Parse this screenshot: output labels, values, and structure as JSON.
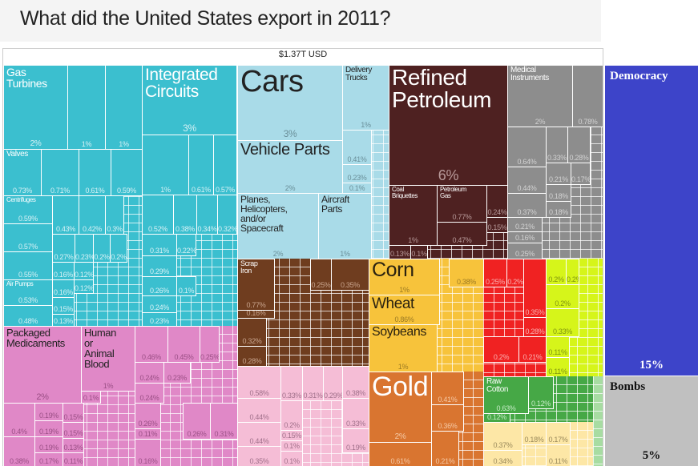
{
  "title": "What did the United States export in 2011?",
  "total_label": "$1.37T USD",
  "chart_data": {
    "type": "treemap",
    "title": "What did the United States export in 2011?",
    "total": "$1.37T USD",
    "groups": [
      {
        "fill": "#3bbfcf",
        "label_color": "#ffffff",
        "pct_color": "#d6f1f5",
        "cells": [
          {
            "label": "Gas\nTurbines",
            "pct": "2%"
          },
          {
            "label": "",
            "pct": "1%"
          },
          {
            "label": "",
            "pct": "1%"
          },
          {
            "label": "Integrated\nCircuits",
            "pct": "3%"
          },
          {
            "label": "Valves",
            "pct": "0.73%"
          },
          {
            "label": "",
            "pct": "0.71%"
          },
          {
            "label": "",
            "pct": "0.61%"
          },
          {
            "label": "",
            "pct": "0.59%"
          },
          {
            "label": "",
            "pct": "1%"
          },
          {
            "label": "",
            "pct": "0.61%"
          },
          {
            "label": "",
            "pct": "0.57%"
          },
          {
            "label": "Centrifuges",
            "pct": "0.59%"
          },
          {
            "label": "",
            "pct": "0.57%"
          },
          {
            "label": "",
            "pct": "0.55%"
          },
          {
            "label": "Air Pumps",
            "pct": "0.53%"
          },
          {
            "label": "",
            "pct": "0.48%"
          },
          {
            "label": "",
            "pct": "0.43%"
          },
          {
            "label": "",
            "pct": "0.42%"
          },
          {
            "label": "",
            "pct": "0.3%"
          },
          {
            "label": "",
            "pct": "0.52%"
          },
          {
            "label": "",
            "pct": "0.38%"
          },
          {
            "label": "",
            "pct": "0.34%"
          },
          {
            "label": "",
            "pct": "0.32%"
          },
          {
            "label": "",
            "pct": "0.27%"
          },
          {
            "label": "",
            "pct": "0.23%"
          },
          {
            "label": "",
            "pct": "0.2%"
          },
          {
            "label": "",
            "pct": "0.2%"
          },
          {
            "label": "",
            "pct": "0.16%"
          },
          {
            "label": "",
            "pct": "0.12%"
          },
          {
            "label": "",
            "pct": "0.16%"
          },
          {
            "label": "",
            "pct": "0.12%"
          },
          {
            "label": "",
            "pct": "0.15%"
          },
          {
            "label": "",
            "pct": "0.13%"
          },
          {
            "label": "",
            "pct": "0.31%"
          },
          {
            "label": "",
            "pct": "0.29%"
          },
          {
            "label": "",
            "pct": "0.26%"
          },
          {
            "label": "",
            "pct": "0.24%"
          },
          {
            "label": "",
            "pct": "0.23%"
          },
          {
            "label": "",
            "pct": "0.22%"
          },
          {
            "label": "",
            "pct": "0.1%"
          }
        ]
      },
      {
        "fill": "#a9dbe8",
        "label_color": "#222222",
        "pct_color": "#6a8f99",
        "cells": [
          {
            "label": "Cars",
            "pct": "3%"
          },
          {
            "label": "Vehicle Parts",
            "pct": "2%"
          },
          {
            "label": "Delivery\nTrucks",
            "pct": "1%"
          },
          {
            "label": "",
            "pct": "0.41%"
          },
          {
            "label": "",
            "pct": "0.23%"
          },
          {
            "label": "",
            "pct": "0.1%"
          },
          {
            "label": "Planes,\nHelicopters,\nand/or\nSpacecraft",
            "pct": "2%"
          },
          {
            "label": "Aircraft\nParts",
            "pct": "1%"
          }
        ]
      },
      {
        "fill": "#4e2121",
        "label_color": "#ffffff",
        "pct_color": "#b89a9a",
        "cells": [
          {
            "label": "Refined\nPetroleum",
            "pct": "6%"
          },
          {
            "label": "Coal\nBriquettes",
            "pct": "1%"
          },
          {
            "label": "Petroleum\nGas",
            "pct": "0.77%"
          },
          {
            "label": "",
            "pct": "0.47%"
          },
          {
            "label": "",
            "pct": "0.24%"
          },
          {
            "label": "",
            "pct": "0.15%"
          },
          {
            "label": "",
            "pct": "0.13%"
          },
          {
            "label": "",
            "pct": "0.1%"
          }
        ]
      },
      {
        "fill": "#8d8d8d",
        "label_color": "#ffffff",
        "pct_color": "#d2d2d2",
        "cells": [
          {
            "label": "Medical\nInstruments",
            "pct": "2%"
          },
          {
            "label": "",
            "pct": "0.78%"
          },
          {
            "label": "",
            "pct": "0.64%"
          },
          {
            "label": "",
            "pct": "0.33%"
          },
          {
            "label": "",
            "pct": "0.28%"
          },
          {
            "label": "",
            "pct": "0.44%"
          },
          {
            "label": "",
            "pct": "0.21%"
          },
          {
            "label": "",
            "pct": "0.17%"
          },
          {
            "label": "",
            "pct": "0.18%"
          },
          {
            "label": "",
            "pct": "0.37%"
          },
          {
            "label": "",
            "pct": "0.18%"
          },
          {
            "label": "",
            "pct": "0.21%"
          },
          {
            "label": "",
            "pct": "0.16%"
          },
          {
            "label": "",
            "pct": "0.25%"
          }
        ]
      },
      {
        "fill": "#6f3d1f",
        "label_color": "#ffffff",
        "pct_color": "#c9a58e",
        "cells": [
          {
            "label": "Scrap\nIron",
            "pct": "0.77%"
          },
          {
            "label": "",
            "pct": "0.16%"
          },
          {
            "label": "",
            "pct": "0.32%"
          },
          {
            "label": "",
            "pct": "0.28%"
          },
          {
            "label": "",
            "pct": "0.25%"
          },
          {
            "label": "",
            "pct": "0.35%"
          }
        ]
      },
      {
        "fill": "#e088c7",
        "label_color": "#222222",
        "pct_color": "#9a4f85",
        "cells": [
          {
            "label": "Packaged\nMedicaments",
            "pct": "2%"
          },
          {
            "label": "Human\nor\nAnimal\nBlood",
            "pct": "1%"
          },
          {
            "label": "",
            "pct": "0.1%"
          },
          {
            "label": "",
            "pct": "0.46%"
          },
          {
            "label": "",
            "pct": "0.45%"
          },
          {
            "label": "",
            "pct": "0.25%"
          },
          {
            "label": "",
            "pct": "0.24%"
          },
          {
            "label": "",
            "pct": "0.23%"
          },
          {
            "label": "",
            "pct": "0.24%"
          },
          {
            "label": "",
            "pct": "0.4%"
          },
          {
            "label": "",
            "pct": "0.38%"
          },
          {
            "label": "",
            "pct": "0.19%"
          },
          {
            "label": "",
            "pct": "0.19%"
          },
          {
            "label": "",
            "pct": "0.19%"
          },
          {
            "label": "",
            "pct": "0.17%"
          },
          {
            "label": "",
            "pct": "0.15%"
          },
          {
            "label": "",
            "pct": "0.15%"
          },
          {
            "label": "",
            "pct": "0.13%"
          },
          {
            "label": "",
            "pct": "0.11%"
          },
          {
            "label": "",
            "pct": "0.26%"
          },
          {
            "label": "",
            "pct": "0.11%"
          },
          {
            "label": "",
            "pct": "0.16%"
          },
          {
            "label": "",
            "pct": "0.26%"
          },
          {
            "label": "",
            "pct": "0.31%"
          }
        ]
      },
      {
        "fill": "#f5bdd6",
        "label_color": "#222222",
        "pct_color": "#a0708a",
        "cells": [
          {
            "label": "",
            "pct": "0.58%"
          },
          {
            "label": "",
            "pct": "0.44%"
          },
          {
            "label": "",
            "pct": "0.44%"
          },
          {
            "label": "",
            "pct": "0.35%"
          },
          {
            "label": "",
            "pct": "0.33%"
          },
          {
            "label": "",
            "pct": "0.31%"
          },
          {
            "label": "",
            "pct": "0.29%"
          },
          {
            "label": "",
            "pct": "0.38%"
          },
          {
            "label": "",
            "pct": "0.2%"
          },
          {
            "label": "",
            "pct": "0.15%"
          },
          {
            "label": "",
            "pct": "0.1%"
          },
          {
            "label": "",
            "pct": "0.1%"
          },
          {
            "label": "",
            "pct": "0.33%"
          },
          {
            "label": "",
            "pct": "0.19%"
          }
        ]
      },
      {
        "fill": "#f7c33b",
        "label_color": "#2a2210",
        "pct_color": "#9b7a24",
        "cells": [
          {
            "label": "Corn",
            "pct": "1%"
          },
          {
            "label": "Wheat",
            "pct": "0.86%"
          },
          {
            "label": "Soybeans",
            "pct": "1%"
          },
          {
            "label": "",
            "pct": "0.38%"
          }
        ]
      },
      {
        "fill": "#d97530",
        "label_color": "#ffffff",
        "pct_color": "#f5c9a5",
        "cells": [
          {
            "label": "Gold",
            "pct": "2%"
          },
          {
            "label": "",
            "pct": "0.61%"
          },
          {
            "label": "",
            "pct": "0.41%"
          },
          {
            "label": "",
            "pct": "0.36%"
          },
          {
            "label": "",
            "pct": "0.21%"
          }
        ]
      },
      {
        "fill": "#f02222",
        "label_color": "#ffffff",
        "pct_color": "#f9b0b0",
        "cells": [
          {
            "label": "",
            "pct": "0.25%"
          },
          {
            "label": "",
            "pct": "0.2%"
          },
          {
            "label": "",
            "pct": "0.35%"
          },
          {
            "label": "",
            "pct": "0.28%"
          },
          {
            "label": "",
            "pct": "0.2%"
          },
          {
            "label": "",
            "pct": "0.21%"
          }
        ]
      },
      {
        "fill": "#d6f51a",
        "label_color": "#222222",
        "pct_color": "#7f9410",
        "cells": [
          {
            "label": "",
            "pct": "0.2%"
          },
          {
            "label": "",
            "pct": "0.2%"
          },
          {
            "label": "",
            "pct": "0.2%"
          },
          {
            "label": "",
            "pct": "0.33%"
          },
          {
            "label": "",
            "pct": "0.11%"
          },
          {
            "label": "",
            "pct": "0.11%"
          }
        ]
      },
      {
        "fill": "#46a846",
        "label_color": "#ffffff",
        "pct_color": "#c6ecc6",
        "cells": [
          {
            "label": "Raw\nCotton",
            "pct": "0.63%"
          },
          {
            "label": "",
            "pct": "0.12%"
          },
          {
            "label": "",
            "pct": "0.12%"
          }
        ]
      },
      {
        "fill": "#fde7a6",
        "label_color": "#222222",
        "pct_color": "#9a8a5c",
        "cells": [
          {
            "label": "",
            "pct": "0.37%"
          },
          {
            "label": "",
            "pct": "0.34%"
          },
          {
            "label": "",
            "pct": "0.18%"
          },
          {
            "label": "",
            "pct": "0.17%"
          },
          {
            "label": "",
            "pct": "0.11%"
          }
        ]
      },
      {
        "fill": "#a7dca2",
        "label_color": "#222222",
        "pct_color": "#5c8f58",
        "cells": []
      },
      {
        "fill": "#3d44c9",
        "label_color": "#ffffff",
        "pct_color": "#ffffff",
        "cells": [
          {
            "label": "Democracy",
            "pct": "15%"
          }
        ]
      },
      {
        "fill": "#c0c0c0",
        "label_color": "#111111",
        "pct_color": "#111111",
        "cells": [
          {
            "label": "Bombs",
            "pct": "5%"
          }
        ]
      }
    ]
  }
}
